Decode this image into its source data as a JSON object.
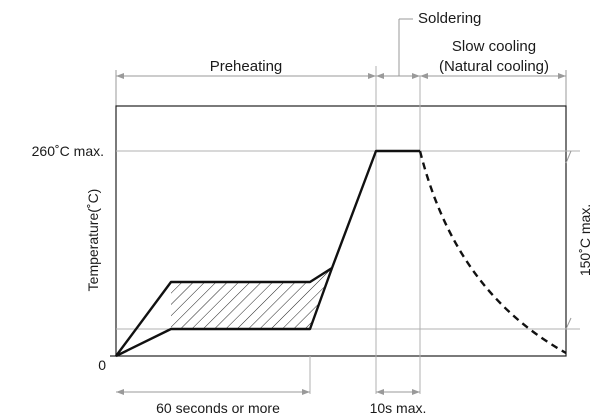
{
  "diagram": {
    "labels": {
      "soldering": "Soldering",
      "slow_cooling_line1": "Slow cooling",
      "slow_cooling_line2": "(Natural cooling)",
      "preheating": "Preheating",
      "peak_temp": "260˚C max.",
      "y_axis": "Temperature(˚C)",
      "cool_limit": "150˚C max.",
      "zero": "0",
      "preheat_time": "60 seconds or more",
      "solder_time": "10s max."
    },
    "colors": {
      "line": "#111111",
      "guide": "#b0b0b0",
      "dimension": "#9a9a9a"
    }
  }
}
